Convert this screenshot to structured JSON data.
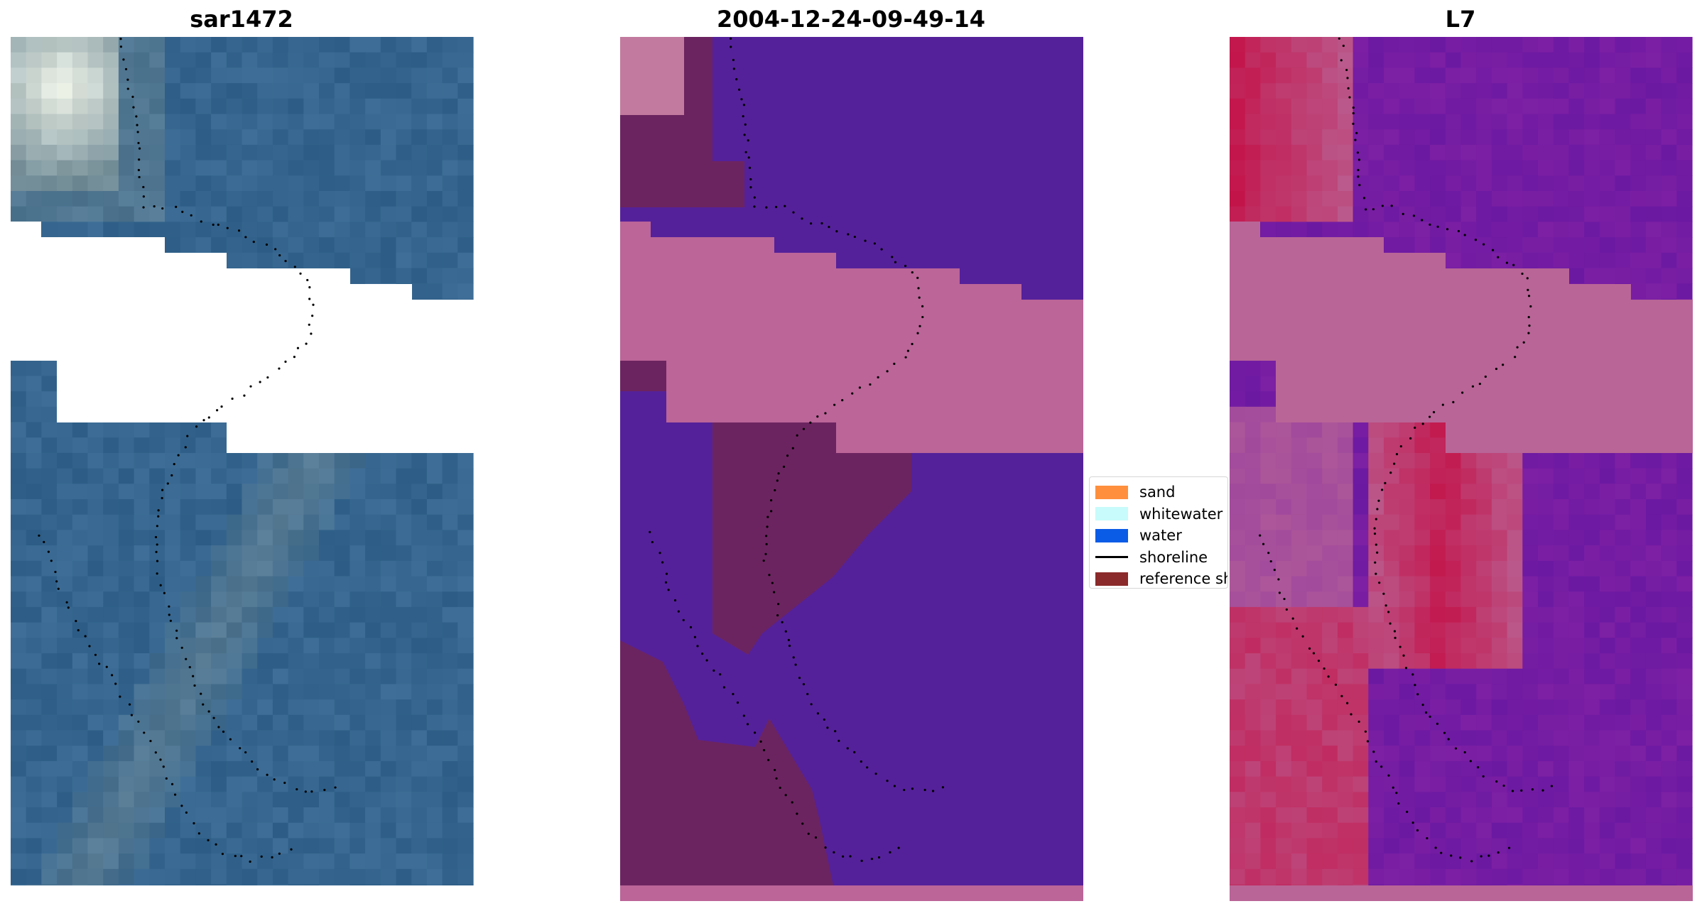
{
  "panels": [
    {
      "title": "sar1472",
      "kind": "rgb"
    },
    {
      "title": "2004-12-24-09-49-14",
      "kind": "classified"
    },
    {
      "title": "L7",
      "kind": "mndwi"
    }
  ],
  "legend": {
    "items": [
      {
        "label": "sand",
        "color": "#ff8f3d",
        "type": "patch"
      },
      {
        "label": "whitewater",
        "color": "#c8fbfb",
        "type": "patch"
      },
      {
        "label": "water",
        "color": "#0a5ce6",
        "type": "patch"
      },
      {
        "label": "shoreline",
        "color": "#000000",
        "type": "line"
      },
      {
        "label": "reference shoreline",
        "color": "#8b2a2a",
        "type": "patch"
      }
    ]
  },
  "colors": {
    "rgb_water": "#36668f",
    "rgb_sand": "#6f8a95",
    "rgb_bright": "#f4f8ec",
    "class_purple": "#55219a",
    "class_maroon": "#6c2460",
    "class_pink": "#bb6598",
    "class_pink_light": "#c37a9f",
    "mndwi_purple": "#7d20a4",
    "mndwi_red": "#c3144a",
    "mndwi_pink": "#b96597",
    "shoreline_dots": "#000000"
  }
}
